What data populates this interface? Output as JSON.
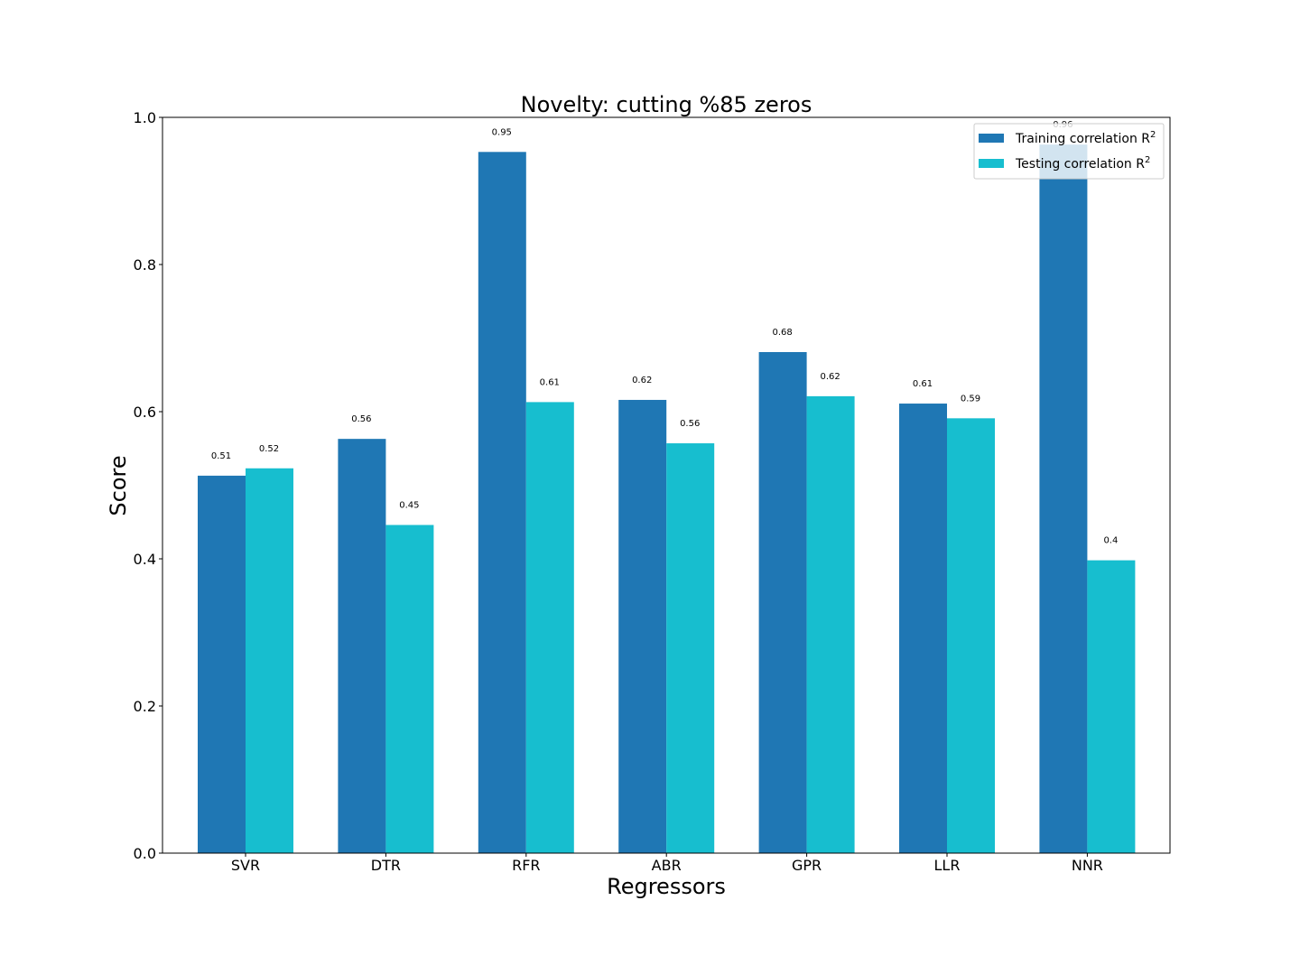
{
  "chart_data": {
    "type": "bar",
    "title": "Novelty: cutting %85 zeros",
    "xlabel": "Regressors",
    "ylabel": "Score",
    "categories": [
      "SVR",
      "DTR",
      "RFR",
      "ABR",
      "GPR",
      "LLR",
      "NNR"
    ],
    "series": [
      {
        "name": "Training correlation R",
        "superscript": "2",
        "color": "#1f77b4",
        "values": [
          0.513,
          0.563,
          0.953,
          0.616,
          0.681,
          0.611,
          0.963
        ],
        "labels": [
          "0.51",
          "0.56",
          "0.95",
          "0.62",
          "0.68",
          "0.61",
          "0.96"
        ]
      },
      {
        "name": "Testing correlation R",
        "superscript": "2",
        "color": "#17becf",
        "values": [
          0.523,
          0.446,
          0.613,
          0.557,
          0.621,
          0.591,
          0.398
        ],
        "labels": [
          "0.52",
          "0.45",
          "0.61",
          "0.56",
          "0.62",
          "0.59",
          "0.4"
        ]
      }
    ],
    "ylim": [
      0,
      1.0
    ],
    "yticks": [
      "0.0",
      "0.2",
      "0.4",
      "0.6",
      "0.8",
      "1.0"
    ],
    "grid": false,
    "legend_position": "top-right"
  }
}
